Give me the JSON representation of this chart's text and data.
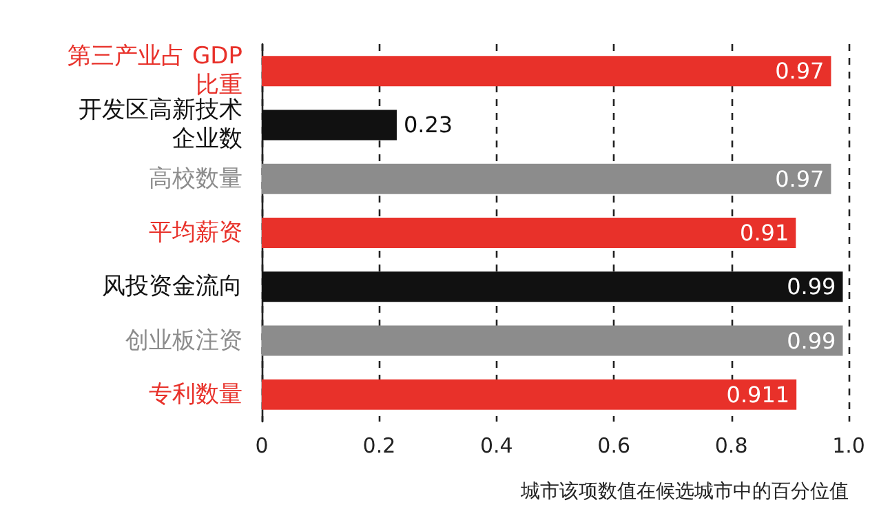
{
  "chart_data": {
    "type": "bar",
    "orientation": "horizontal",
    "categories": [
      "第三产业占 GDP 比重",
      "开发区高新技术企业数",
      "高校数量",
      "平均薪资",
      "风投资金流向",
      "创业板注资",
      "专利数量"
    ],
    "values": [
      0.97,
      0.23,
      0.97,
      0.91,
      0.99,
      0.99,
      0.911
    ],
    "colors": [
      "#e8312a",
      "#111111",
      "#8c8c8c",
      "#e8312a",
      "#111111",
      "#8c8c8c",
      "#e8312a"
    ],
    "xlabel": "城市该项数值在候选城市中的百分位值",
    "xlim": [
      0,
      1
    ],
    "xticks": [
      0,
      0.2,
      0.4,
      0.6,
      0.8,
      {
        "value": 1,
        "label": "1.0"
      }
    ],
    "grid": "x",
    "data_labels": true
  }
}
